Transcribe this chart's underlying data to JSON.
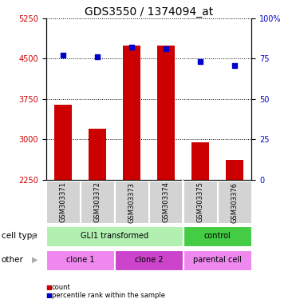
{
  "title": "GDS3550 / 1374094_at",
  "samples": [
    "GSM303371",
    "GSM303372",
    "GSM303373",
    "GSM303374",
    "GSM303375",
    "GSM303376"
  ],
  "counts": [
    3650,
    3200,
    4750,
    4750,
    2940,
    2620
  ],
  "percentile_ranks": [
    77,
    76,
    82,
    81,
    73,
    71
  ],
  "ylim_left": [
    2250,
    5250
  ],
  "ylim_right": [
    0,
    100
  ],
  "yticks_left": [
    2250,
    3000,
    3750,
    4500,
    5250
  ],
  "yticks_right": [
    0,
    25,
    50,
    75,
    100
  ],
  "ytick_right_labels": [
    "0",
    "25",
    "50",
    "75",
    "100%"
  ],
  "bar_color": "#cc0000",
  "dot_color": "#0000cc",
  "bar_base": 2250,
  "cell_type_groups": [
    {
      "label": "GLI1 transformed",
      "start": 0,
      "end": 4,
      "color": "#b2f0b2"
    },
    {
      "label": "control",
      "start": 4,
      "end": 6,
      "color": "#44cc44"
    }
  ],
  "other_groups": [
    {
      "label": "clone 1",
      "start": 0,
      "end": 2,
      "color": "#ee82ee"
    },
    {
      "label": "clone 2",
      "start": 2,
      "end": 4,
      "color": "#cc44cc"
    },
    {
      "label": "parental cell",
      "start": 4,
      "end": 6,
      "color": "#ee82ee"
    }
  ],
  "tick_fontsize": 7,
  "title_fontsize": 10,
  "bg_color": "#ffffff",
  "sample_bg_color": "#d3d3d3",
  "label_fontsize": 7.5,
  "sample_fontsize": 6,
  "group_fontsize": 7
}
